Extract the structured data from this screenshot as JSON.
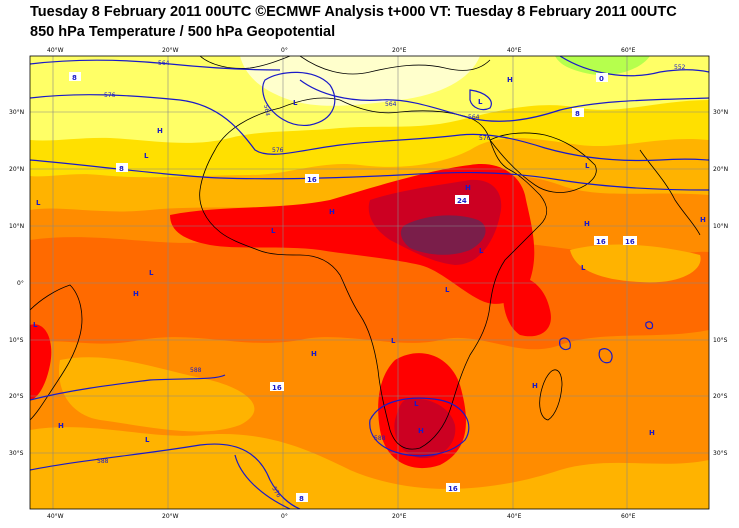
{
  "title_line1": "Tuesday 8 February 2011 00UTC ©ECMWF Analysis t+000 VT: Tuesday 8 February 2011 00UTC",
  "title_line2": "850 hPa Temperature / 500 hPa Geopotential",
  "lon_ticks": [
    "40°W",
    "20°W",
    "0°",
    "20°E",
    "40°E",
    "60°E"
  ],
  "lat_ticks_left": [
    "30°N",
    "20°N",
    "10°N",
    "0°",
    "10°S",
    "20°S",
    "30°S"
  ],
  "lat_ticks_right": [
    "30°N",
    "20°N",
    "10°N",
    "0°",
    "10°S",
    "20°S",
    "30°S"
  ],
  "geopotential_labels": [
    "564",
    "576",
    "564",
    "564",
    "576",
    "564",
    "552",
    "576",
    "588",
    "588",
    "576",
    "588"
  ],
  "temperature_labels": [
    "8",
    "8",
    "16",
    "24",
    "16",
    "16",
    "16",
    "16",
    "8",
    "0",
    "8"
  ],
  "pressure_centres": [
    "L",
    "H",
    "L",
    "L",
    "H",
    "L",
    "H",
    "L",
    "H",
    "L",
    "H",
    "L",
    "L",
    "L",
    "H",
    "L",
    "H",
    "H",
    "L",
    "L",
    "H",
    "L",
    "H",
    "L",
    "H",
    "H",
    "L"
  ],
  "colors": {
    "c0": "#ffffcc",
    "c4": "#ffff66",
    "c8": "#ffe000",
    "c12": "#ffb300",
    "c16": "#ff8c00",
    "c20": "#ff6a00",
    "c24": "#ff0000",
    "c28": "#cc0022",
    "c32": "#7a1e4a",
    "contour": "#1a1ac8",
    "coast": "#000000"
  }
}
